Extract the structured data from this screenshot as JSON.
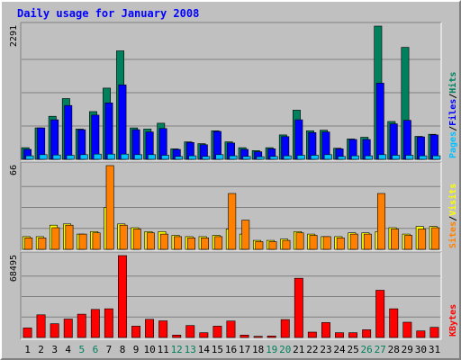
{
  "chart_data": {
    "type": "bar",
    "title": "Daily usage for January 2008",
    "categories": [
      "1",
      "2",
      "3",
      "4",
      "5",
      "6",
      "7",
      "8",
      "9",
      "10",
      "11",
      "12",
      "13",
      "14",
      "15",
      "16",
      "17",
      "18",
      "19",
      "20",
      "21",
      "22",
      "23",
      "24",
      "25",
      "26",
      "27",
      "28",
      "29",
      "30",
      "31"
    ],
    "weekend_days": [
      "5",
      "6",
      "12",
      "13",
      "19",
      "20",
      "26",
      "27"
    ],
    "colors": {
      "background": "#c0c0c0",
      "title": "#0000ff",
      "hits": "#00805c",
      "files": "#0000ff",
      "pages": "#00c0ff",
      "visits": "#ffff00",
      "sites": "#ff8000",
      "kbytes": "#ff0000",
      "weekend_label": "#00805c",
      "weekday_label": "#000000"
    },
    "panels": [
      {
        "name": "hits-files-pages",
        "max_label": "2291",
        "ylim": [
          0,
          2291
        ],
        "legend": [
          {
            "label": "Pages",
            "color": "#00c0ff"
          },
          {
            "label": "/",
            "color": "#000000"
          },
          {
            "label": "Files",
            "color": "#0000ff"
          },
          {
            "label": "/",
            "color": "#000000"
          },
          {
            "label": "Hits",
            "color": "#00805c"
          }
        ],
        "series": [
          {
            "name": "Hits",
            "color": "#00805c",
            "values": [
              200,
              540,
              740,
              1045,
              520,
              820,
              1225,
              1865,
              540,
              520,
              620,
              180,
              300,
              270,
              490,
              300,
              200,
              150,
              200,
              420,
              845,
              490,
              500,
              190,
              350,
              380,
              2291,
              650,
              1925,
              395,
              430
            ]
          },
          {
            "name": "Files",
            "color": "#0000ff",
            "values": [
              170,
              540,
              680,
              925,
              510,
              760,
              970,
              1280,
              510,
              470,
              530,
              170,
              290,
              250,
              480,
              280,
              170,
              130,
              180,
              390,
              680,
              460,
              470,
              180,
              340,
              340,
              1310,
              610,
              670,
              385,
              420
            ]
          },
          {
            "name": "Pages",
            "color": "#00c0ff",
            "values": [
              60,
              80,
              75,
              70,
              80,
              90,
              90,
              90,
              80,
              80,
              70,
              50,
              60,
              50,
              80,
              60,
              50,
              45,
              50,
              60,
              70,
              70,
              80,
              50,
              60,
              60,
              80,
              70,
              70,
              60,
              60
            ]
          }
        ]
      },
      {
        "name": "visits-sites",
        "max_label": "66",
        "ylim": [
          0,
          66
        ],
        "legend": [
          {
            "label": "Sites",
            "color": "#ff8000"
          },
          {
            "label": "/",
            "color": "#000000"
          },
          {
            "label": "Visits",
            "color": "#ffff00"
          }
        ],
        "series": [
          {
            "name": "Visits",
            "color": "#ffff00",
            "values": [
              10,
              10,
              19,
              20,
              12,
              14,
              33,
              20,
              17,
              14,
              14,
              11,
              10,
              10,
              11,
              16,
              12,
              7,
              7,
              8,
              14,
              12,
              10,
              10,
              13,
              13,
              14,
              17,
              12,
              18,
              18
            ]
          },
          {
            "name": "Sites",
            "color": "#ff8000",
            "values": [
              9,
              9,
              17,
              19,
              12,
              13,
              66,
              19,
              16,
              13,
              12,
              10,
              9,
              9,
              10,
              44,
              23,
              6,
              6,
              7,
              13,
              11,
              10,
              9,
              12,
              12,
              44,
              16,
              11,
              16,
              17
            ]
          }
        ]
      },
      {
        "name": "kbytes",
        "max_label": "68495",
        "ylim": [
          0,
          68495
        ],
        "legend": [
          {
            "label": "KBytes",
            "color": "#ff0000"
          }
        ],
        "series": [
          {
            "name": "KBytes",
            "color": "#ff0000",
            "values": [
              8000,
              19000,
              11500,
              15400,
              19500,
              23500,
              24000,
              68495,
              9500,
              15200,
              13900,
              2000,
              10000,
              4000,
              9500,
              13800,
              2000,
              1000,
              1300,
              15000,
              49500,
              4500,
              12500,
              4000,
              4000,
              6500,
              39500,
              24000,
              12800,
              5500,
              8500
            ]
          }
        ]
      }
    ]
  }
}
